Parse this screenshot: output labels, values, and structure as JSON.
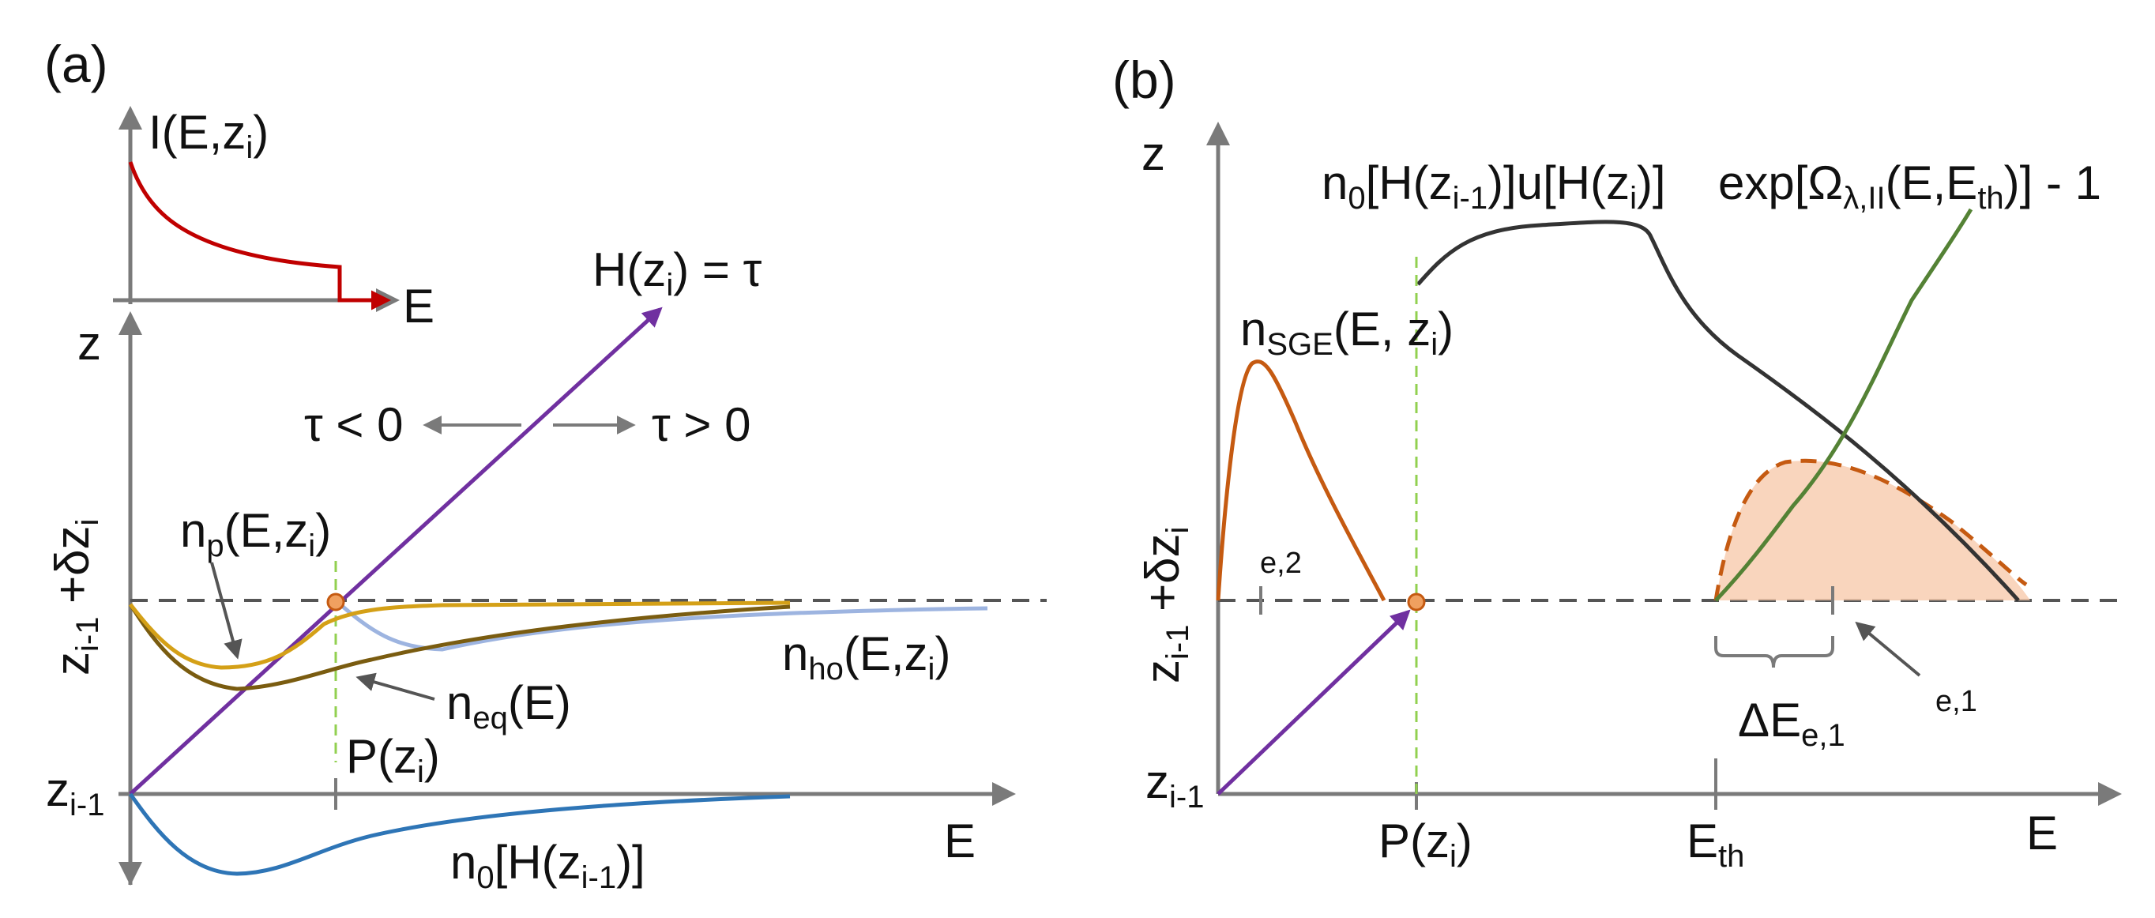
{
  "panel_a": {
    "label": "(a)",
    "inset": {
      "y_label": {
        "main": "I(E,z",
        "sub": "i",
        "tail": ")"
      },
      "x_label": "E"
    },
    "z_label": "z",
    "e_label": "E",
    "z_i1": {
      "main": "z",
      "sub": "i-1"
    },
    "z_i1_dz": {
      "main": "z",
      "sub1": "i-1",
      "mid": " +δz",
      "sub2": "i"
    },
    "h_line": {
      "main": "H(z",
      "sub": "i",
      "tail": ") = τ"
    },
    "tau_neg": "τ < 0",
    "tau_pos": "τ > 0",
    "np": {
      "main": "n",
      "sub": "p",
      "tail": "(E,z",
      "sub2": "i",
      "tail2": ")"
    },
    "neq": {
      "main": "n",
      "sub": "eq",
      "tail": "(E)"
    },
    "nho": {
      "main": "n",
      "sub": "ho",
      "tail": "(E,z",
      "sub2": "i",
      "tail2": ")"
    },
    "pz": {
      "main": "P(z",
      "sub": "i",
      "tail": ")"
    },
    "n0": {
      "main": "n",
      "sub": "0",
      "tail": "[H(z",
      "sub2": "i-1",
      "tail2": ")]"
    }
  },
  "panel_b": {
    "label": "(b)",
    "z_label": "z",
    "e_label": "E",
    "z_i1": {
      "main": "z",
      "sub": "i-1"
    },
    "z_i1_dz": {
      "main": "z",
      "sub1": "i-1",
      "mid": " +δz",
      "sub2": "i"
    },
    "n0u": {
      "a": "n",
      "s1": "0",
      "b": "[H(z",
      "s2": "i-1",
      "c": ")]u[H(z",
      "s3": "i",
      "d": ")]"
    },
    "exp": {
      "a": "exp[Ω",
      "s1": "λ,II",
      "b": "(E,E",
      "s2": "th",
      "c": ")] - 1"
    },
    "nsge": {
      "a": "n",
      "s1": "SGE",
      "b": "(E, z",
      "s2": "i",
      "c": ")"
    },
    "e2": "e,2",
    "e1": "e,1",
    "delta_e": {
      "a": "ΔE",
      "s1": "e,1"
    },
    "pz": {
      "main": "P(z",
      "sub": "i",
      "tail": ")"
    },
    "eth": {
      "main": "E",
      "sub": "th"
    }
  },
  "colors": {
    "axis": "#7a7a7a",
    "dashed": "#555555",
    "red": "#c00000",
    "purple": "#7030a0",
    "gold": "#d4a017",
    "olive": "#7a5c10",
    "lightblue": "#9db4e0",
    "blue": "#2e75b6",
    "green_dash": "#92d050",
    "dark": "#333333",
    "green": "#548235",
    "orange": "#c55a11",
    "peach": "#f8cbad"
  }
}
